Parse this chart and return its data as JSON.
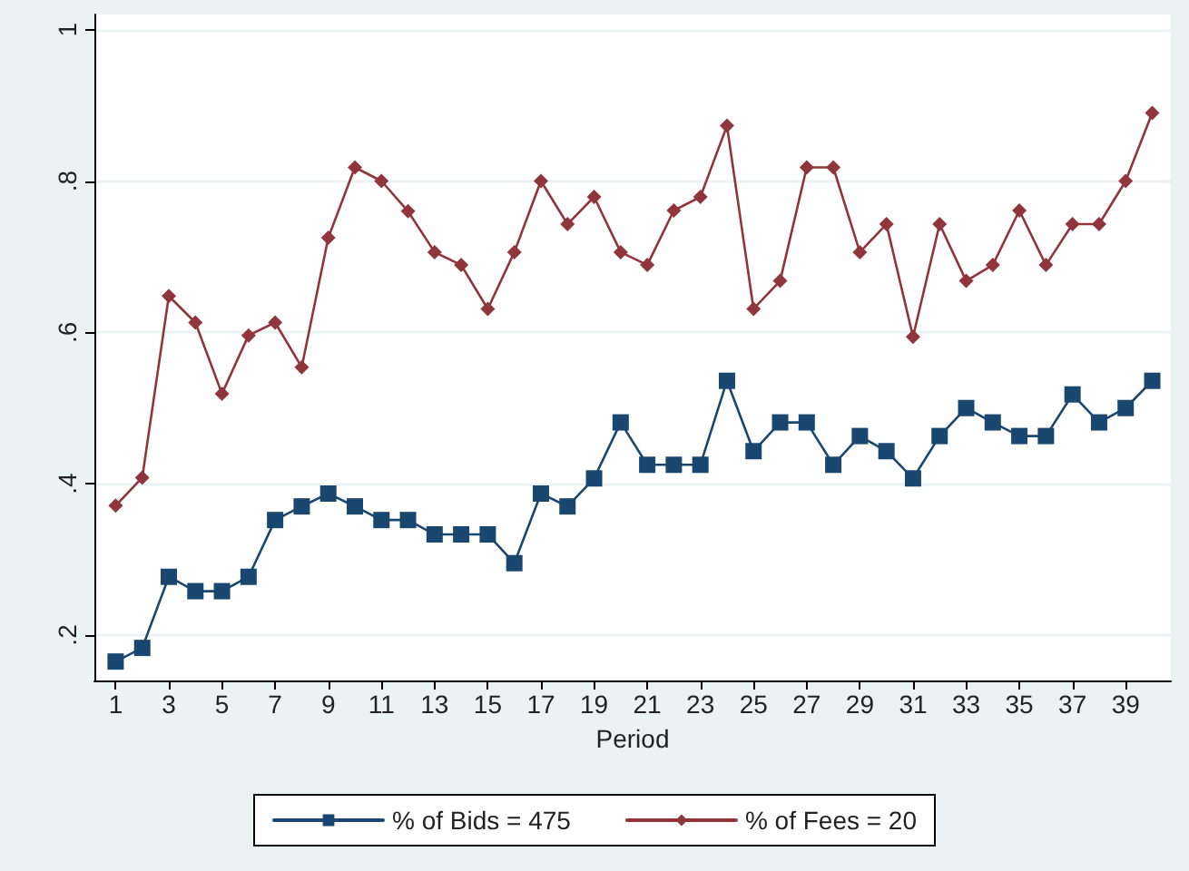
{
  "chart_data": {
    "type": "line",
    "xlabel": "Period",
    "x": [
      1,
      2,
      3,
      4,
      5,
      6,
      7,
      8,
      9,
      10,
      11,
      12,
      13,
      14,
      15,
      16,
      17,
      18,
      19,
      20,
      21,
      22,
      23,
      24,
      25,
      26,
      27,
      28,
      29,
      30,
      31,
      32,
      33,
      34,
      35,
      36,
      37,
      38,
      39,
      40
    ],
    "series": [
      {
        "name": "% of Bids = 475",
        "color": "#1a476f",
        "marker": "square",
        "values": [
          0.165,
          0.183,
          0.277,
          0.258,
          0.258,
          0.277,
          0.352,
          0.37,
          0.387,
          0.37,
          0.352,
          0.352,
          0.333,
          0.333,
          0.333,
          0.295,
          0.387,
          0.37,
          0.407,
          0.481,
          0.425,
          0.425,
          0.425,
          0.536,
          0.443,
          0.481,
          0.481,
          0.425,
          0.463,
          0.443,
          0.407,
          0.463,
          0.5,
          0.481,
          0.463,
          0.463,
          0.518,
          0.481,
          0.5,
          0.536
        ]
      },
      {
        "name": "% of Fees = 20",
        "color": "#90353b",
        "marker": "diamond",
        "values": [
          0.371,
          0.408,
          0.648,
          0.613,
          0.519,
          0.596,
          0.613,
          0.554,
          0.725,
          0.818,
          0.8,
          0.76,
          0.706,
          0.689,
          0.631,
          0.706,
          0.8,
          0.743,
          0.779,
          0.706,
          0.689,
          0.761,
          0.779,
          0.873,
          0.631,
          0.668,
          0.818,
          0.818,
          0.706,
          0.743,
          0.594,
          0.743,
          0.668,
          0.689,
          0.761,
          0.689,
          0.743,
          0.743,
          0.8,
          0.89
        ]
      }
    ],
    "xlim": [
      0.2,
      40.7
    ],
    "xticks": [
      1,
      3,
      5,
      7,
      9,
      11,
      13,
      15,
      17,
      19,
      21,
      23,
      25,
      27,
      29,
      31,
      33,
      35,
      37,
      39
    ],
    "ylim": [
      0.14,
      1.02
    ],
    "yticks": [
      {
        "value": 0.2,
        "label": ".2"
      },
      {
        "value": 0.4,
        "label": ".4"
      },
      {
        "value": 0.6,
        "label": ".6"
      },
      {
        "value": 0.8,
        "label": ".8"
      },
      {
        "value": 1,
        "label": "1"
      }
    ],
    "grid": "y",
    "legend": "bottom",
    "line_style": "solid"
  }
}
